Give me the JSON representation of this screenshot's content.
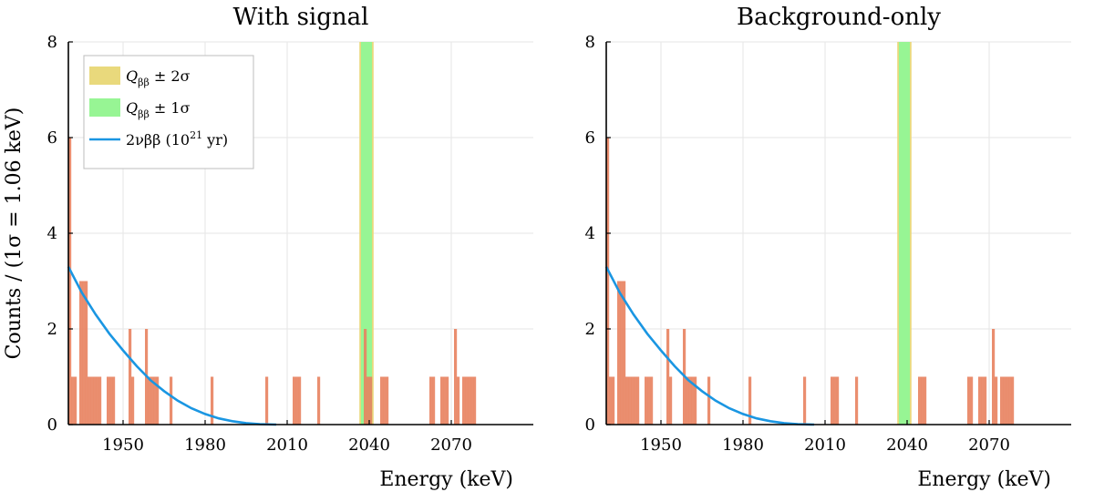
{
  "chart_data": {
    "type": "bar",
    "ylabel": "Counts / (1σ = 1.06 keV)",
    "xlabel": "Energy (keV)",
    "xticks": [
      1950,
      1980,
      2010,
      2040,
      2070
    ],
    "yticks": [
      0,
      2,
      4,
      6,
      8
    ],
    "xlim": [
      1930,
      2100
    ],
    "ylim": [
      0,
      8
    ],
    "bin_width_keV": 1.06,
    "colors": {
      "histogram": "#e8825f",
      "band_2sigma": "#e9d97c",
      "band_1sigma": "#97f594",
      "curve": "#1a96e2"
    },
    "legend": {
      "placement": "top-left",
      "entries": [
        {
          "label": "Q_ββ ± 2σ",
          "prefix": "Q",
          "sub": "ββ",
          "suffix": " ± 2σ"
        },
        {
          "label": "Q_ββ ± 1σ",
          "prefix": "Q",
          "sub": "ββ",
          "suffix": " ± 1σ"
        },
        {
          "label": "2νββ (10^21 yr)",
          "prefix": "2νββ (10",
          "sup": "21",
          "suffix": " yr)"
        }
      ]
    },
    "qbb_bands": {
      "center": 2039.0,
      "one_sigma": [
        2037.0,
        2041.0
      ],
      "two_sigma": [
        2036.4,
        2041.6
      ]
    },
    "curve_2nbb": [
      [
        1930,
        3.3
      ],
      [
        1935,
        2.75
      ],
      [
        1940,
        2.3
      ],
      [
        1945,
        1.9
      ],
      [
        1950,
        1.55
      ],
      [
        1955,
        1.22
      ],
      [
        1960,
        0.93
      ],
      [
        1965,
        0.7
      ],
      [
        1970,
        0.5
      ],
      [
        1975,
        0.34
      ],
      [
        1980,
        0.22
      ],
      [
        1985,
        0.13
      ],
      [
        1990,
        0.07
      ],
      [
        1995,
        0.03
      ],
      [
        2000,
        0.01
      ],
      [
        2006,
        0.0
      ]
    ],
    "panels": [
      {
        "title": "With signal",
        "show_legend": true,
        "bins": [
          [
            1930,
            6
          ],
          [
            1931,
            1
          ],
          [
            1932,
            1
          ],
          [
            1934,
            3
          ],
          [
            1935,
            3
          ],
          [
            1936,
            3
          ],
          [
            1937,
            1
          ],
          [
            1938,
            1
          ],
          [
            1939,
            1
          ],
          [
            1940,
            1
          ],
          [
            1941,
            1
          ],
          [
            1944,
            1
          ],
          [
            1945,
            1
          ],
          [
            1946,
            1
          ],
          [
            1952,
            2
          ],
          [
            1953,
            1
          ],
          [
            1958,
            2
          ],
          [
            1959,
            1
          ],
          [
            1960,
            1
          ],
          [
            1961,
            1
          ],
          [
            1962,
            1
          ],
          [
            1967,
            1
          ],
          [
            1982,
            1
          ],
          [
            2002,
            1
          ],
          [
            2012,
            1
          ],
          [
            2013,
            1
          ],
          [
            2014,
            1
          ],
          [
            2021,
            1
          ],
          [
            2038,
            2
          ],
          [
            2039,
            1
          ],
          [
            2040,
            1
          ],
          [
            2044,
            1
          ],
          [
            2045,
            1
          ],
          [
            2046,
            1
          ],
          [
            2062,
            1
          ],
          [
            2063,
            1
          ],
          [
            2066,
            1
          ],
          [
            2067,
            1
          ],
          [
            2068,
            1
          ],
          [
            2071,
            2
          ],
          [
            2072,
            1
          ],
          [
            2074,
            1
          ],
          [
            2075,
            1
          ],
          [
            2076,
            1
          ],
          [
            2077,
            1
          ],
          [
            2078,
            1
          ]
        ]
      },
      {
        "title": "Background-only",
        "show_legend": false,
        "bins": [
          [
            1930,
            6
          ],
          [
            1931,
            1
          ],
          [
            1932,
            1
          ],
          [
            1934,
            3
          ],
          [
            1935,
            3
          ],
          [
            1936,
            3
          ],
          [
            1937,
            1
          ],
          [
            1938,
            1
          ],
          [
            1939,
            1
          ],
          [
            1940,
            1
          ],
          [
            1941,
            1
          ],
          [
            1944,
            1
          ],
          [
            1945,
            1
          ],
          [
            1946,
            1
          ],
          [
            1952,
            2
          ],
          [
            1953,
            1
          ],
          [
            1958,
            2
          ],
          [
            1959,
            1
          ],
          [
            1960,
            1
          ],
          [
            1961,
            1
          ],
          [
            1962,
            1
          ],
          [
            1967,
            1
          ],
          [
            1982,
            1
          ],
          [
            2002,
            1
          ],
          [
            2012,
            1
          ],
          [
            2013,
            1
          ],
          [
            2014,
            1
          ],
          [
            2021,
            1
          ],
          [
            2044,
            1
          ],
          [
            2045,
            1
          ],
          [
            2046,
            1
          ],
          [
            2062,
            1
          ],
          [
            2063,
            1
          ],
          [
            2066,
            1
          ],
          [
            2067,
            1
          ],
          [
            2068,
            1
          ],
          [
            2071,
            2
          ],
          [
            2072,
            1
          ],
          [
            2074,
            1
          ],
          [
            2075,
            1
          ],
          [
            2076,
            1
          ],
          [
            2077,
            1
          ],
          [
            2078,
            1
          ]
        ]
      }
    ]
  }
}
